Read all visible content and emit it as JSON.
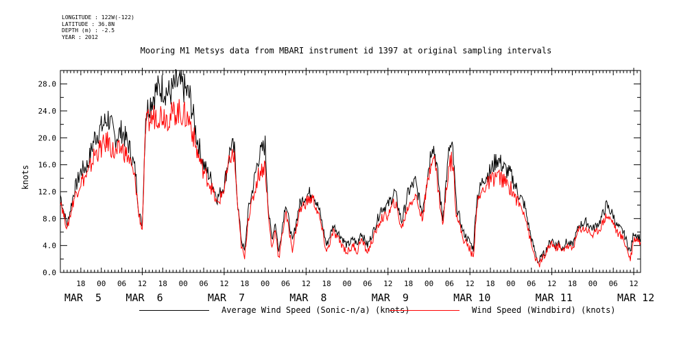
{
  "header": {
    "longitude": "LONGITUDE : 122W(-122)",
    "latitude": "LATITUDE : 36.8N",
    "depth": "DEPTH (m) : -2.5",
    "year": "YEAR : 2012"
  },
  "chart_data": {
    "type": "line",
    "title": "Mooring M1 Metsys data from MBARI instrument id 1397 at original sampling intervals",
    "ylabel": "knots",
    "ylim": [
      0,
      30
    ],
    "y_ticks": [
      0,
      4,
      8,
      12,
      16,
      20,
      24,
      28
    ],
    "y_tick_labels": [
      "0.0",
      "4.0",
      "8.0",
      "12.0",
      "16.0",
      "20.0",
      "24.0",
      "28.0"
    ],
    "x_unit": "hours since 2012-03-04 12:00",
    "x_range": [
      0,
      170
    ],
    "hour_ticks": [
      {
        "x": 6,
        "label": "18"
      },
      {
        "x": 12,
        "label": "00"
      },
      {
        "x": 18,
        "label": "06"
      },
      {
        "x": 24,
        "label": "12"
      },
      {
        "x": 30,
        "label": "18"
      },
      {
        "x": 36,
        "label": "00"
      },
      {
        "x": 42,
        "label": "06"
      },
      {
        "x": 48,
        "label": "12"
      },
      {
        "x": 54,
        "label": "18"
      },
      {
        "x": 60,
        "label": "00"
      },
      {
        "x": 66,
        "label": "06"
      },
      {
        "x": 72,
        "label": "12"
      },
      {
        "x": 78,
        "label": "18"
      },
      {
        "x": 84,
        "label": "00"
      },
      {
        "x": 90,
        "label": "06"
      },
      {
        "x": 96,
        "label": "12"
      },
      {
        "x": 102,
        "label": "18"
      },
      {
        "x": 108,
        "label": "00"
      },
      {
        "x": 114,
        "label": "06"
      },
      {
        "x": 120,
        "label": "12"
      },
      {
        "x": 126,
        "label": "18"
      },
      {
        "x": 132,
        "label": "00"
      },
      {
        "x": 138,
        "label": "06"
      },
      {
        "x": 144,
        "label": "12"
      },
      {
        "x": 150,
        "label": "18"
      },
      {
        "x": 156,
        "label": "00"
      },
      {
        "x": 162,
        "label": "06"
      },
      {
        "x": 168,
        "label": "12"
      }
    ],
    "day_labels": [
      {
        "x": 6,
        "label": "MAR  5"
      },
      {
        "x": 24,
        "label": "MAR  6"
      },
      {
        "x": 48,
        "label": "MAR  7"
      },
      {
        "x": 72,
        "label": "MAR  8"
      },
      {
        "x": 96,
        "label": "MAR  9"
      },
      {
        "x": 120,
        "label": "MAR 10"
      },
      {
        "x": 144,
        "label": "MAR 11"
      },
      {
        "x": 168,
        "label": "MAR 12"
      }
    ],
    "grid": false,
    "legend_position": "bottom",
    "series": [
      {
        "name": "Average Wind Speed (Sonic-n/a) (knots)",
        "color": "#000000",
        "x": [
          0,
          1,
          2,
          4,
          6,
          8,
          10,
          12,
          14,
          16,
          18,
          20,
          22,
          23,
          24,
          25,
          26,
          28,
          30,
          32,
          34,
          36,
          38,
          40,
          42,
          44,
          46,
          48,
          50,
          51,
          52,
          53,
          54,
          55,
          56,
          58,
          60,
          61,
          62,
          63,
          64,
          66,
          68,
          70,
          72,
          74,
          76,
          78,
          80,
          82,
          84,
          86,
          87,
          88,
          90,
          92,
          94,
          96,
          98,
          100,
          102,
          104,
          106,
          108,
          109,
          110,
          112,
          114,
          115,
          116,
          118,
          120,
          121,
          122,
          124,
          126,
          128,
          130,
          132,
          134,
          136,
          138,
          140,
          142,
          144,
          145,
          146,
          147,
          148,
          150,
          152,
          154,
          156,
          158,
          160,
          162,
          163,
          164,
          165,
          166,
          167,
          168,
          169,
          170
        ],
        "y": [
          11.5,
          9.0,
          7.0,
          12.0,
          15.0,
          16.0,
          20.0,
          21.5,
          23.0,
          20.0,
          21.0,
          19.0,
          15.0,
          9.0,
          7.0,
          23.5,
          25.0,
          27.0,
          27.5,
          26.5,
          28.0,
          27.5,
          26.0,
          20.0,
          16.0,
          14.0,
          11.0,
          13.0,
          19.0,
          18.0,
          10.0,
          5.0,
          3.0,
          9.0,
          11.5,
          17.0,
          19.0,
          9.0,
          5.0,
          7.5,
          3.0,
          10.5,
          4.5,
          10.0,
          11.5,
          12.0,
          9.0,
          4.0,
          7.0,
          5.5,
          4.0,
          5.0,
          4.0,
          6.0,
          4.0,
          6.5,
          9.5,
          10.0,
          12.0,
          7.5,
          12.0,
          13.5,
          9.0,
          16.0,
          19.5,
          17.0,
          8.0,
          18.5,
          18.0,
          10.0,
          6.0,
          4.5,
          3.5,
          11.0,
          14.0,
          15.0,
          17.0,
          15.5,
          14.5,
          12.0,
          10.0,
          5.0,
          1.5,
          3.0,
          5.0,
          4.0,
          4.5,
          3.5,
          4.5,
          4.0,
          7.0,
          7.5,
          6.5,
          7.5,
          10.0,
          8.5,
          7.0,
          6.5,
          6.0,
          4.5,
          3.0,
          6.0,
          5.5,
          5.0
        ]
      },
      {
        "name": "Wind Speed (Windbird) (knots)",
        "color": "#ff0000",
        "x": [
          0,
          1,
          2,
          4,
          6,
          8,
          10,
          12,
          14,
          16,
          18,
          20,
          22,
          23,
          24,
          25,
          26,
          28,
          30,
          32,
          34,
          36,
          38,
          40,
          42,
          44,
          46,
          48,
          50,
          51,
          52,
          53,
          54,
          55,
          56,
          58,
          60,
          61,
          62,
          63,
          64,
          66,
          68,
          70,
          72,
          74,
          76,
          78,
          80,
          82,
          84,
          86,
          87,
          88,
          90,
          92,
          94,
          96,
          98,
          100,
          102,
          104,
          106,
          108,
          109,
          110,
          112,
          114,
          115,
          116,
          118,
          120,
          121,
          122,
          124,
          126,
          128,
          130,
          132,
          134,
          136,
          138,
          140,
          142,
          144,
          145,
          146,
          147,
          148,
          150,
          152,
          154,
          156,
          158,
          160,
          162,
          163,
          164,
          165,
          166,
          167,
          168,
          169,
          170
        ],
        "y": [
          11.0,
          8.5,
          6.5,
          11.0,
          13.5,
          14.5,
          17.5,
          18.5,
          19.5,
          17.5,
          18.5,
          17.0,
          13.5,
          8.5,
          6.5,
          21.5,
          22.5,
          23.5,
          23.5,
          23.0,
          24.0,
          23.5,
          22.5,
          18.0,
          15.0,
          13.0,
          10.0,
          12.5,
          17.5,
          17.0,
          9.5,
          4.0,
          2.0,
          8.0,
          10.0,
          14.5,
          16.0,
          8.0,
          3.5,
          6.5,
          2.0,
          9.0,
          3.5,
          9.0,
          10.5,
          11.0,
          8.0,
          3.0,
          6.0,
          4.5,
          3.0,
          4.0,
          3.0,
          5.0,
          3.0,
          5.5,
          8.0,
          8.5,
          10.5,
          6.5,
          10.0,
          11.5,
          8.0,
          14.5,
          18.0,
          15.5,
          7.0,
          16.5,
          16.5,
          9.0,
          5.0,
          3.5,
          2.0,
          10.0,
          12.5,
          13.5,
          14.5,
          13.5,
          12.5,
          10.5,
          9.0,
          4.0,
          1.0,
          2.5,
          4.5,
          3.5,
          4.0,
          3.0,
          4.0,
          3.5,
          6.5,
          6.5,
          5.5,
          6.5,
          8.5,
          7.5,
          6.0,
          5.5,
          5.0,
          3.5,
          2.0,
          5.0,
          5.0,
          4.5
        ]
      }
    ]
  }
}
